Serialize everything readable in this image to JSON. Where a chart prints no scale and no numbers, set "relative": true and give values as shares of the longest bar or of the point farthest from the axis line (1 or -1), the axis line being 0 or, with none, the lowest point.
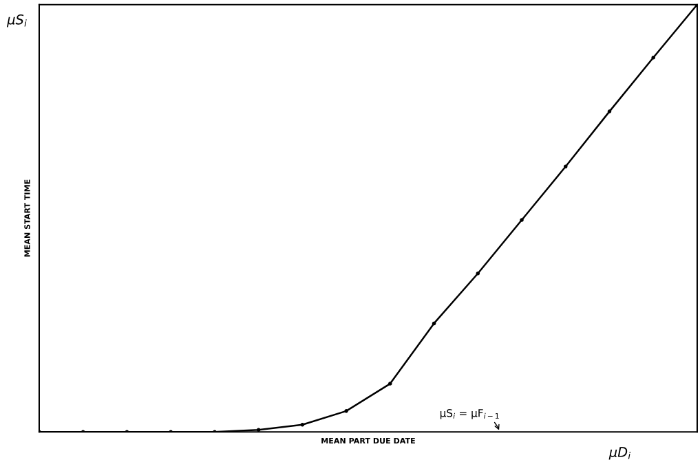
{
  "chart_data": {
    "type": "line",
    "relative": true,
    "xlabel": "MEAN PART DUE DATE",
    "ylabel": "MEAN START TIME",
    "categories": [
      null,
      null,
      null,
      null,
      null,
      null,
      null,
      null,
      null,
      null,
      null,
      null,
      null,
      null,
      null,
      null
    ],
    "series": [
      {
        "color": "#000000",
        "values": [
          0,
          0,
          0,
          0,
          0,
          0.005,
          0.017,
          0.049,
          0.113,
          0.254,
          0.371,
          0.496,
          0.621,
          0.75,
          0.876,
          1
        ]
      }
    ],
    "marker": "circle",
    "line_style": "solid",
    "legend": false,
    "annotations": [
      "μS$_{i}$ = μF$_{i−1}$",
      "μS$_{i}$",
      "μD$_{i}$"
    ]
  }
}
